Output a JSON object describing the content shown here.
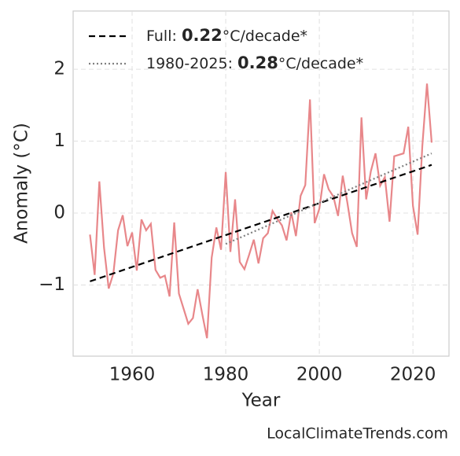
{
  "chart_data": {
    "type": "line",
    "x": [
      1951,
      1952,
      1953,
      1954,
      1955,
      1956,
      1957,
      1958,
      1959,
      1960,
      1961,
      1962,
      1963,
      1964,
      1965,
      1966,
      1967,
      1968,
      1969,
      1970,
      1971,
      1972,
      1973,
      1974,
      1975,
      1976,
      1977,
      1978,
      1979,
      1980,
      1981,
      1982,
      1983,
      1984,
      1985,
      1986,
      1987,
      1988,
      1989,
      1990,
      1991,
      1992,
      1993,
      1994,
      1995,
      1996,
      1997,
      1998,
      1999,
      2000,
      2001,
      2002,
      2003,
      2004,
      2005,
      2006,
      2007,
      2008,
      2009,
      2010,
      2011,
      2012,
      2013,
      2014,
      2015,
      2016,
      2017,
      2018,
      2019,
      2020,
      2021,
      2022,
      2023,
      2024
    ],
    "values": [
      -0.3,
      -0.86,
      0.44,
      -0.48,
      -1.05,
      -0.84,
      -0.24,
      -0.03,
      -0.46,
      -0.27,
      -0.8,
      -0.09,
      -0.24,
      -0.15,
      -0.79,
      -0.9,
      -0.87,
      -1.16,
      -0.13,
      -1.12,
      -1.33,
      -1.54,
      -1.46,
      -1.06,
      -1.41,
      -1.74,
      -0.62,
      -0.2,
      -0.51,
      0.57,
      -0.54,
      0.19,
      -0.68,
      -0.78,
      -0.58,
      -0.37,
      -0.7,
      -0.35,
      -0.28,
      0.03,
      -0.08,
      -0.17,
      -0.38,
      0.01,
      -0.32,
      0.24,
      0.39,
      1.58,
      -0.14,
      0.06,
      0.54,
      0.33,
      0.23,
      -0.04,
      0.52,
      0.14,
      -0.28,
      -0.47,
      1.33,
      0.19,
      0.58,
      0.83,
      0.38,
      0.5,
      -0.12,
      0.79,
      0.81,
      0.83,
      1.2,
      0.1,
      -0.3,
      0.93,
      1.8,
      0.98
    ],
    "color": "#e8878a",
    "series": [
      {
        "name": [
          "Full: ",
          "0.22",
          "°C/decade*"
        ],
        "color": "#000000",
        "dash": "dashed",
        "x": [
          1951,
          2024
        ],
        "values": [
          -0.95,
          0.67
        ]
      },
      {
        "name": [
          "1980-2025: ",
          "0.28",
          "°C/decade*"
        ],
        "color": "#808080",
        "dash": "dotted",
        "x": [
          1980,
          2024
        ],
        "values": [
          -0.43,
          0.83
        ]
      }
    ],
    "xlabel": "Year",
    "ylabel": "Anomaly (°C)",
    "xlim": [
      1947.4,
      2027.7
    ],
    "ylim": [
      -1.99,
      2.81
    ],
    "xticks": [
      1960,
      1980,
      2000,
      2020
    ],
    "yticks": [
      {
        "value": -1,
        "label": "−1"
      },
      0,
      1,
      2
    ],
    "grid": true,
    "legend": "upper left",
    "source": "LocalClimateTrends.com"
  }
}
